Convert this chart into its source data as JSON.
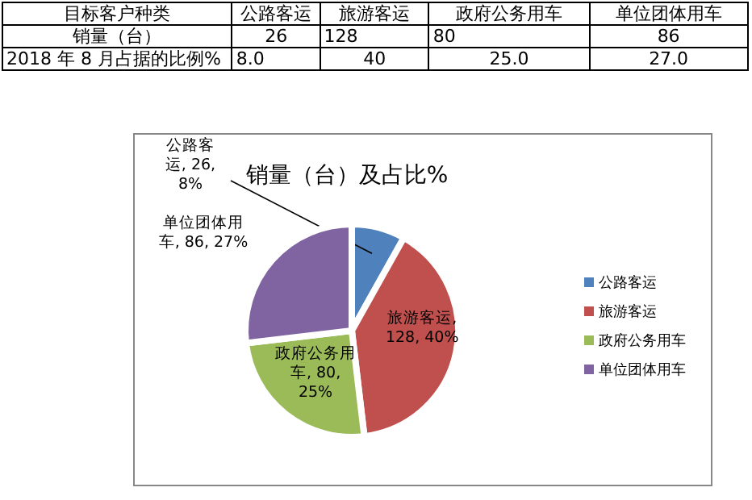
{
  "chart_data": {
    "type": "pie",
    "title": "销量（台）及占比%",
    "categories": [
      "公路客运",
      "旅游客运",
      "政府公务用车",
      "单位团体用车"
    ],
    "values": [
      26,
      128,
      80,
      86
    ],
    "colors": [
      "#4f81bd",
      "#c0504d",
      "#9bbb59",
      "#8064a2"
    ],
    "value_labels": [
      "公路客运, 26, 8%",
      "旅游客运, 128, 40%",
      "政府公务用车, 80, 25%",
      "单位团体用车, 86, 27%"
    ],
    "annotations": [
      "目标客户种类",
      "销量（台）",
      "2018 年 8 月占据的比例%",
      "26",
      "128",
      "80",
      "86",
      "8.0",
      "40",
      "25.0",
      "27.0"
    ],
    "legend": "right"
  }
}
